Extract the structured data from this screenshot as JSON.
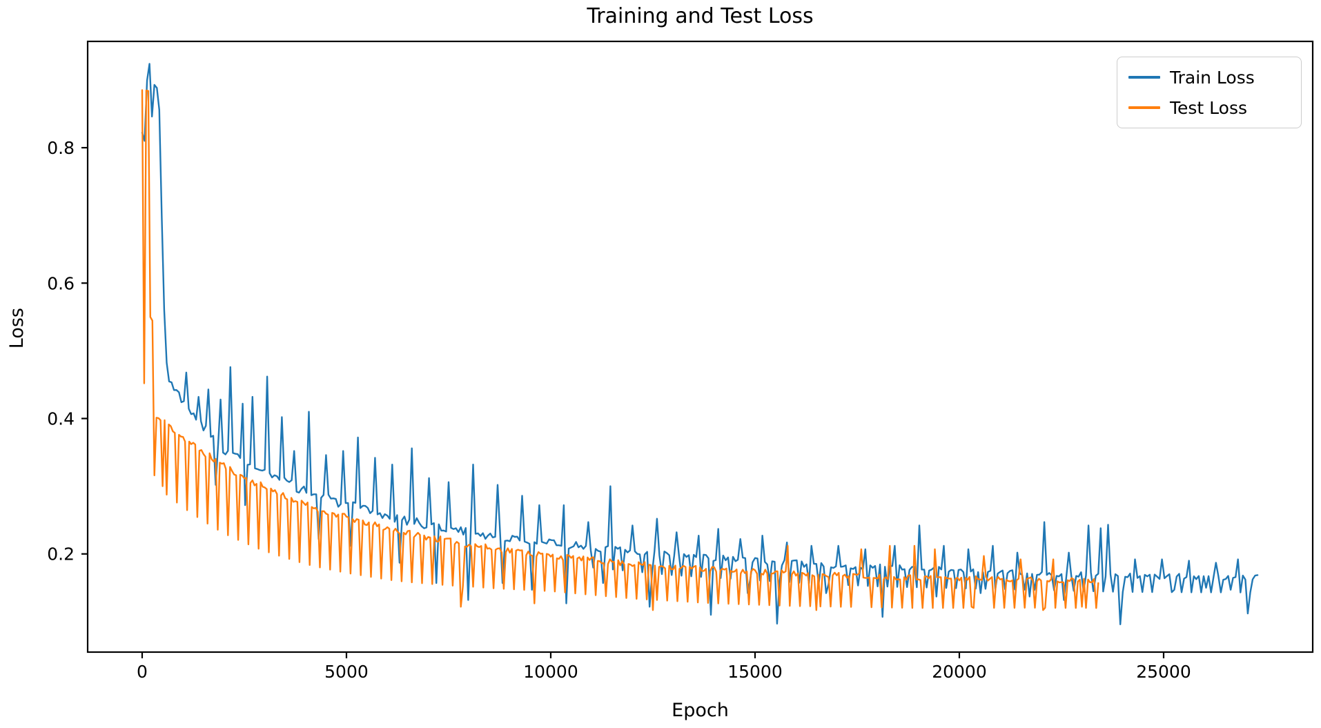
{
  "chart_data": {
    "type": "line",
    "title": "Training and Test Loss",
    "xlabel": "Epoch",
    "ylabel": "Loss",
    "background_color": "#ffffff",
    "axes_edge_color": "#000000",
    "grid": false,
    "legend_position": "upper right",
    "xlim": [
      -1334,
      28649
    ],
    "ylim": [
      0.055,
      0.957
    ],
    "xticks": {
      "values": [
        0,
        5000,
        10000,
        15000,
        20000,
        25000
      ],
      "labels": [
        "0",
        "5000",
        "10000",
        "15000",
        "20000",
        "25000"
      ]
    },
    "yticks": {
      "values": [
        0.2,
        0.4,
        0.6,
        0.8
      ],
      "labels": [
        "0.2",
        "0.4",
        "0.6",
        "0.8"
      ]
    },
    "series": [
      {
        "name": "Train Loss",
        "color": "#1f77b4",
        "epoch_start": 0,
        "epoch_end": 27300,
        "step": 60,
        "seed": 3,
        "trend": [
          [
            0,
            0.82
          ],
          [
            25,
            0.915
          ],
          [
            60,
            0.898
          ],
          [
            120,
            0.9
          ],
          [
            200,
            0.897
          ],
          [
            300,
            0.893
          ],
          [
            380,
            0.887
          ],
          [
            420,
            0.86
          ],
          [
            450,
            0.78
          ],
          [
            480,
            0.7
          ],
          [
            510,
            0.62
          ],
          [
            540,
            0.56
          ],
          [
            570,
            0.51
          ],
          [
            620,
            0.472
          ],
          [
            700,
            0.452
          ],
          [
            800,
            0.44
          ],
          [
            900,
            0.432
          ],
          [
            1000,
            0.424
          ],
          [
            1200,
            0.406
          ],
          [
            1400,
            0.392
          ],
          [
            1700,
            0.373
          ],
          [
            2000,
            0.357
          ],
          [
            2300,
            0.344
          ],
          [
            2600,
            0.333
          ],
          [
            3000,
            0.32
          ],
          [
            3500,
            0.306
          ],
          [
            4000,
            0.293
          ],
          [
            4500,
            0.282
          ],
          [
            5000,
            0.272
          ],
          [
            5500,
            0.264
          ],
          [
            6000,
            0.256
          ],
          [
            6500,
            0.249
          ],
          [
            7000,
            0.243
          ],
          [
            7500,
            0.237
          ],
          [
            8000,
            0.232
          ],
          [
            8500,
            0.227
          ],
          [
            9000,
            0.223
          ],
          [
            9500,
            0.219
          ],
          [
            10000,
            0.216
          ],
          [
            11000,
            0.21
          ],
          [
            12000,
            0.204
          ],
          [
            13000,
            0.198
          ],
          [
            14000,
            0.194
          ],
          [
            15000,
            0.19
          ],
          [
            16000,
            0.186
          ],
          [
            17000,
            0.183
          ],
          [
            18000,
            0.18
          ],
          [
            19000,
            0.178
          ],
          [
            20000,
            0.176
          ],
          [
            21000,
            0.174
          ],
          [
            22000,
            0.172
          ],
          [
            23000,
            0.17
          ],
          [
            24000,
            0.168
          ],
          [
            25000,
            0.167
          ],
          [
            26000,
            0.166
          ],
          [
            27300,
            0.165
          ]
        ],
        "noise_amp": [
          [
            0,
            0.005
          ],
          [
            400,
            0.006
          ],
          [
            700,
            0.009
          ],
          [
            3000,
            0.008
          ],
          [
            8000,
            0.006
          ],
          [
            14000,
            0.005
          ],
          [
            27300,
            0.004
          ]
        ],
        "comb": {
          "period": 240,
          "phase": 0,
          "start": 11000,
          "depth": [
            [
              11000,
              0.03
            ],
            [
              18000,
              0.028
            ],
            [
              27300,
              0.022
            ]
          ]
        },
        "spikes_up": [
          [
            150,
            0.924
          ],
          [
            1080,
            0.468
          ],
          [
            1380,
            0.432
          ],
          [
            1620,
            0.443
          ],
          [
            1900,
            0.428
          ],
          [
            2160,
            0.476
          ],
          [
            2460,
            0.422
          ],
          [
            2700,
            0.432
          ],
          [
            3060,
            0.462
          ],
          [
            3420,
            0.402
          ],
          [
            3720,
            0.352
          ],
          [
            4080,
            0.41
          ],
          [
            4500,
            0.346
          ],
          [
            4920,
            0.352
          ],
          [
            5280,
            0.372
          ],
          [
            5700,
            0.342
          ],
          [
            6120,
            0.332
          ],
          [
            6600,
            0.356
          ],
          [
            7020,
            0.312
          ],
          [
            7500,
            0.306
          ],
          [
            8100,
            0.332
          ],
          [
            8700,
            0.302
          ],
          [
            9300,
            0.286
          ],
          [
            9720,
            0.272
          ],
          [
            10320,
            0.272
          ],
          [
            10920,
            0.247
          ],
          [
            11460,
            0.3
          ],
          [
            12000,
            0.242
          ],
          [
            12600,
            0.252
          ],
          [
            13080,
            0.232
          ],
          [
            13620,
            0.227
          ],
          [
            14100,
            0.237
          ],
          [
            14640,
            0.222
          ],
          [
            15180,
            0.227
          ],
          [
            15780,
            0.217
          ],
          [
            16380,
            0.212
          ],
          [
            17040,
            0.212
          ],
          [
            17700,
            0.207
          ],
          [
            18420,
            0.212
          ],
          [
            19020,
            0.242
          ],
          [
            19620,
            0.212
          ],
          [
            20220,
            0.207
          ],
          [
            20820,
            0.212
          ],
          [
            21420,
            0.202
          ],
          [
            22080,
            0.247
          ],
          [
            22680,
            0.202
          ],
          [
            23160,
            0.242
          ],
          [
            23460,
            0.238
          ],
          [
            23640,
            0.243
          ],
          [
            24300,
            0.192
          ],
          [
            24960,
            0.192
          ],
          [
            25620,
            0.19
          ],
          [
            26280,
            0.187
          ],
          [
            26820,
            0.192
          ]
        ],
        "spikes_down": [
          [
            80,
            0.81
          ],
          [
            250,
            0.846
          ],
          [
            1800,
            0.302
          ],
          [
            2520,
            0.272
          ],
          [
            4320,
            0.222
          ],
          [
            5100,
            0.212
          ],
          [
            6300,
            0.187
          ],
          [
            7200,
            0.157
          ],
          [
            7980,
            0.132
          ],
          [
            8820,
            0.157
          ],
          [
            9540,
            0.147
          ],
          [
            10380,
            0.127
          ],
          [
            11280,
            0.157
          ],
          [
            12420,
            0.122
          ],
          [
            13920,
            0.11
          ],
          [
            14820,
            0.142
          ],
          [
            15540,
            0.097
          ],
          [
            16740,
            0.142
          ],
          [
            18120,
            0.107
          ],
          [
            19440,
            0.137
          ],
          [
            20520,
            0.142
          ],
          [
            21720,
            0.137
          ],
          [
            22560,
            0.132
          ],
          [
            23940,
            0.096
          ],
          [
            25260,
            0.147
          ],
          [
            26040,
            0.15
          ],
          [
            26640,
            0.147
          ],
          [
            27060,
            0.112
          ]
        ]
      },
      {
        "name": "Test Loss",
        "color": "#ff7f0e",
        "epoch_start": 0,
        "epoch_end": 23400,
        "step": 50,
        "seed": 11,
        "trend": [
          [
            0,
            0.885
          ],
          [
            160,
            0.883
          ],
          [
            185,
            0.548
          ],
          [
            255,
            0.544
          ],
          [
            285,
            0.47
          ],
          [
            315,
            0.402
          ],
          [
            450,
            0.398
          ],
          [
            600,
            0.392
          ],
          [
            800,
            0.382
          ],
          [
            1000,
            0.372
          ],
          [
            1200,
            0.363
          ],
          [
            1500,
            0.35
          ],
          [
            1800,
            0.338
          ],
          [
            2100,
            0.327
          ],
          [
            2400,
            0.317
          ],
          [
            2800,
            0.304
          ],
          [
            3200,
            0.293
          ],
          [
            3600,
            0.283
          ],
          [
            4000,
            0.273
          ],
          [
            4500,
            0.263
          ],
          [
            5000,
            0.254
          ],
          [
            5500,
            0.246
          ],
          [
            6000,
            0.238
          ],
          [
            6500,
            0.231
          ],
          [
            7000,
            0.225
          ],
          [
            7500,
            0.219
          ],
          [
            8000,
            0.214
          ],
          [
            8500,
            0.209
          ],
          [
            9000,
            0.205
          ],
          [
            9500,
            0.201
          ],
          [
            10000,
            0.197
          ],
          [
            11000,
            0.191
          ],
          [
            12000,
            0.185
          ],
          [
            13000,
            0.181
          ],
          [
            14000,
            0.177
          ],
          [
            15000,
            0.174
          ],
          [
            16000,
            0.171
          ],
          [
            17000,
            0.169
          ],
          [
            18000,
            0.167
          ],
          [
            19000,
            0.165
          ],
          [
            20000,
            0.164
          ],
          [
            21000,
            0.163
          ],
          [
            22000,
            0.162
          ],
          [
            23400,
            0.16
          ]
        ],
        "noise_amp": [
          [
            0,
            0.003
          ],
          [
            400,
            0.005
          ],
          [
            23400,
            0.0035
          ]
        ],
        "comb": {
          "period": 250,
          "phase": 100,
          "start": 400,
          "depth": [
            [
              400,
              0.105
            ],
            [
              2000,
              0.1
            ],
            [
              4000,
              0.088
            ],
            [
              6000,
              0.076
            ],
            [
              8000,
              0.062
            ],
            [
              10000,
              0.052
            ],
            [
              14000,
              0.05
            ],
            [
              18000,
              0.046
            ],
            [
              23400,
              0.04
            ]
          ]
        },
        "spikes_up": [
          [
            15800,
            0.212
          ],
          [
            17600,
            0.207
          ],
          [
            18300,
            0.212
          ],
          [
            18900,
            0.212
          ],
          [
            19400,
            0.207
          ],
          [
            20600,
            0.197
          ],
          [
            21500,
            0.192
          ],
          [
            22300,
            0.192
          ]
        ],
        "spikes_down": [
          [
            40,
            0.452
          ],
          [
            290,
            0.316
          ],
          [
            520,
            0.3
          ],
          [
            7800,
            0.122
          ],
          [
            9600,
            0.127
          ],
          [
            12500,
            0.117
          ],
          [
            16500,
            0.117
          ],
          [
            20300,
            0.122
          ],
          [
            22050,
            0.117
          ],
          [
            23000,
            0.122
          ]
        ]
      }
    ]
  }
}
